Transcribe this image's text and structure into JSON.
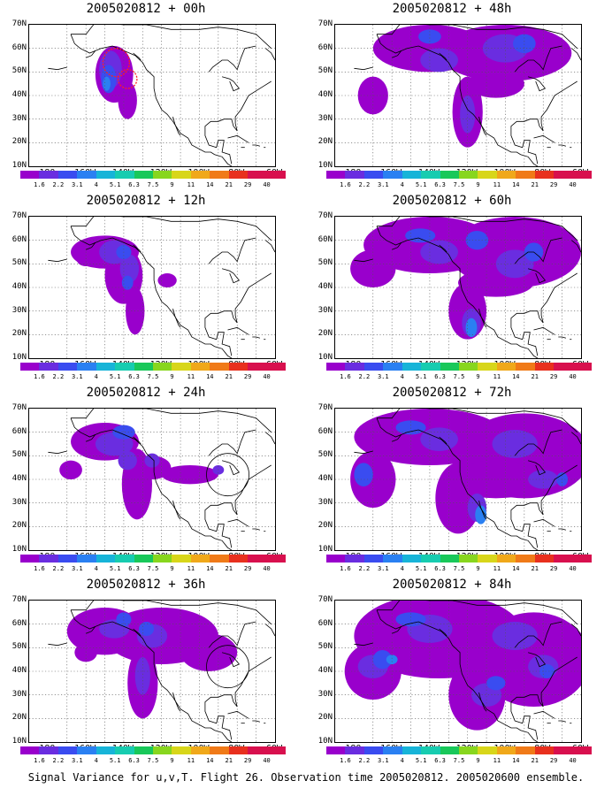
{
  "caption": "Signal Variance for u,v,T. Flight 26. Observation time 2005020812. 2005020600 ensemble.",
  "latitude_labels": [
    "70N",
    "60N",
    "50N",
    "40N",
    "30N",
    "20N",
    "10N"
  ],
  "longitude_labels": [
    "180",
    "160W",
    "140W",
    "120W",
    "100W",
    "80W",
    "60W"
  ],
  "colorbar": {
    "levels": [
      "1.6",
      "2.2",
      "3.1",
      "4",
      "5.1",
      "6.3",
      "7.5",
      "9",
      "11",
      "14",
      "21",
      "29",
      "40"
    ],
    "colors": [
      "#9900cc",
      "#6a2de0",
      "#3a4cf0",
      "#2a80f2",
      "#17b4d8",
      "#17ccb0",
      "#19c85a",
      "#88d61e",
      "#d8d61a",
      "#f0a81a",
      "#f07a18",
      "#e8301e",
      "#d8104e"
    ]
  },
  "panels": [
    {
      "title": "2005020812 + 00h"
    },
    {
      "title": "2005020812 + 12h"
    },
    {
      "title": "2005020812 + 24h"
    },
    {
      "title": "2005020812 + 36h"
    },
    {
      "title": "2005020812 + 48h"
    },
    {
      "title": "2005020812 + 60h"
    },
    {
      "title": "2005020812 + 72h"
    },
    {
      "title": "2005020812 + 84h"
    }
  ],
  "colors": {
    "low_variance": "#9900cc",
    "mid_variance": "#6a2de0",
    "high_variance": "#3a4cf0",
    "peak_variance": "#2a80f2",
    "max_variance": "#17b4d8",
    "observation_marker": "#ff2020"
  }
}
